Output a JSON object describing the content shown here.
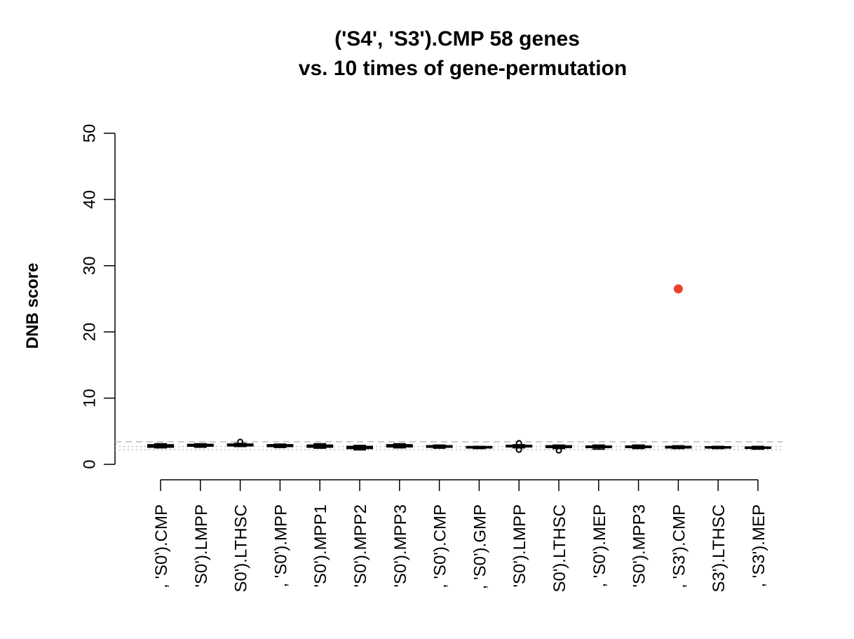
{
  "chart_data": {
    "type": "box",
    "title_lines": [
      "('S4', 'S3').CMP 58 genes",
      "vs.  10 times of gene-permutation"
    ],
    "xlabel": "",
    "ylabel": "DNB score",
    "ylim": [
      0,
      50
    ],
    "yticks": [
      0,
      10,
      20,
      30,
      40,
      50
    ],
    "categories": [
      ", 'S0').CMP",
      "'S0').LMPP",
      "S0').LTHSC",
      ", 'S0').MPP",
      "'S0').MPP1",
      "'S0').MPP2",
      "'S0').MPP3",
      ", 'S0').CMP",
      ", 'S0').GMP",
      "'S0').LMPP",
      "S0').LTHSC",
      ", 'S0').MEP",
      "'S0').MPP3",
      ", 'S3').CMP",
      "S3').LTHSC",
      ", 'S3').MEP"
    ],
    "boxes": [
      {
        "min": 2.5,
        "q1": 2.6,
        "median": 2.8,
        "q3": 2.95,
        "max": 3.1,
        "outliers": []
      },
      {
        "min": 2.6,
        "q1": 2.75,
        "median": 2.9,
        "q3": 3.0,
        "max": 3.1,
        "outliers": []
      },
      {
        "min": 2.7,
        "q1": 2.8,
        "median": 2.95,
        "q3": 3.05,
        "max": 3.15,
        "outliers": [
          3.4
        ]
      },
      {
        "min": 2.55,
        "q1": 2.7,
        "median": 2.85,
        "q3": 2.95,
        "max": 3.05,
        "outliers": []
      },
      {
        "min": 2.45,
        "q1": 2.6,
        "median": 2.75,
        "q3": 2.9,
        "max": 3.1,
        "outliers": []
      },
      {
        "min": 2.2,
        "q1": 2.4,
        "median": 2.55,
        "q3": 2.7,
        "max": 2.85,
        "outliers": []
      },
      {
        "min": 2.5,
        "q1": 2.65,
        "median": 2.8,
        "q3": 2.95,
        "max": 3.1,
        "outliers": []
      },
      {
        "min": 2.45,
        "q1": 2.6,
        "median": 2.7,
        "q3": 2.8,
        "max": 2.9,
        "outliers": []
      },
      {
        "min": 2.4,
        "q1": 2.5,
        "median": 2.6,
        "q3": 2.65,
        "max": 2.7,
        "outliers": []
      },
      {
        "min": 2.5,
        "q1": 2.65,
        "median": 2.75,
        "q3": 2.85,
        "max": 2.95,
        "outliers": [
          2.2,
          3.2
        ]
      },
      {
        "min": 2.4,
        "q1": 2.55,
        "median": 2.65,
        "q3": 2.8,
        "max": 2.9,
        "outliers": [
          2.1
        ]
      },
      {
        "min": 2.3,
        "q1": 2.55,
        "median": 2.65,
        "q3": 2.75,
        "max": 2.9,
        "outliers": []
      },
      {
        "min": 2.4,
        "q1": 2.55,
        "median": 2.65,
        "q3": 2.75,
        "max": 2.9,
        "outliers": []
      },
      {
        "min": 2.4,
        "q1": 2.5,
        "median": 2.6,
        "q3": 2.7,
        "max": 2.8,
        "outliers": []
      },
      {
        "min": 2.4,
        "q1": 2.5,
        "median": 2.55,
        "q3": 2.65,
        "max": 2.7,
        "outliers": []
      },
      {
        "min": 2.3,
        "q1": 2.45,
        "median": 2.5,
        "q3": 2.6,
        "max": 2.7,
        "outliers": []
      }
    ],
    "observed_point": {
      "category_index": 13,
      "value": 26.5,
      "color": "#e8432e"
    },
    "reference_lines": [
      {
        "value": 3.4,
        "style": "dashed",
        "color": "#bbbbbb"
      },
      {
        "value": 2.7,
        "style": "dotted",
        "color": "#bbbbbb"
      },
      {
        "value": 2.2,
        "style": "dotted",
        "color": "#bbbbbb"
      }
    ],
    "grid": false,
    "legend": "none"
  }
}
